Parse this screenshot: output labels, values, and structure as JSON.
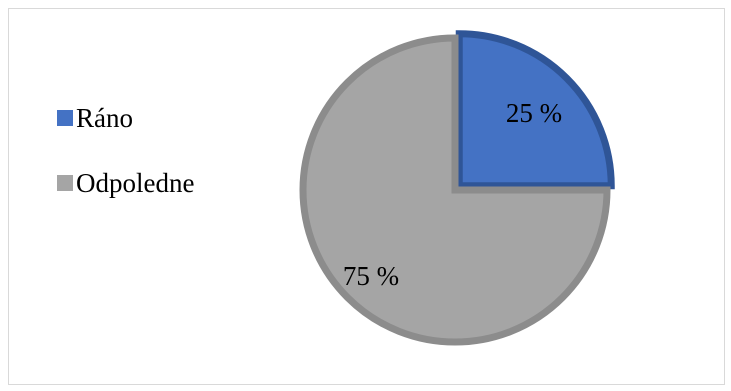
{
  "chart_data": {
    "type": "pie",
    "title": "",
    "legend_position": "left",
    "categories": [
      "Ráno",
      "Odpoledne"
    ],
    "values": [
      25,
      75
    ],
    "labels": [
      "25 %",
      "75 %"
    ],
    "colors": [
      "#4472C4",
      "#A5A5A5"
    ],
    "border_colors": [
      "#2F5597",
      "#8C8C8C"
    ]
  }
}
